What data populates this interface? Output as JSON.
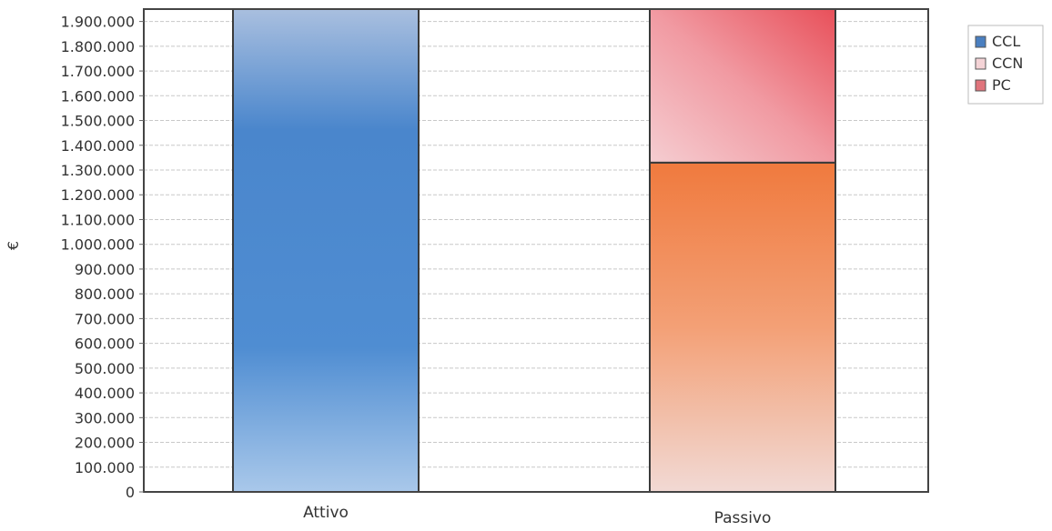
{
  "chart_data": {
    "type": "bar",
    "stacked": true,
    "title": "",
    "xlabel": "",
    "ylabel": "€",
    "ylim": [
      0,
      1950000
    ],
    "grid": true,
    "legend_position": "top-right",
    "categories": [
      "Attivo",
      "Passivo"
    ],
    "yticks": [
      0,
      100000,
      200000,
      300000,
      400000,
      500000,
      600000,
      700000,
      800000,
      900000,
      1000000,
      1100000,
      1200000,
      1300000,
      1400000,
      1500000,
      1600000,
      1700000,
      1800000,
      1900000
    ],
    "ytick_labels": [
      "0",
      "100.000",
      "200.000",
      "300.000",
      "400.000",
      "500.000",
      "600.000",
      "700.000",
      "800.000",
      "900.000",
      "1.000.000",
      "1.100.000",
      "1.200.000",
      "1.300.000",
      "1.400.000",
      "1.500.000",
      "1.600.000",
      "1.700.000",
      "1.800.000",
      "1.900.000"
    ],
    "series": [
      {
        "name": "CCL",
        "values": [
          1950000,
          0
        ],
        "color": "#3f7fc8"
      },
      {
        "name": "CCN",
        "values": [
          0,
          1330000
        ],
        "color": "#f08a4e"
      },
      {
        "name": "PC",
        "values": [
          0,
          620000
        ],
        "color": "#ec7a82"
      }
    ],
    "legend_colors": {
      "CCL": "#4a7fc0",
      "CCN": "#f4d3d6",
      "PC": "#e0747c"
    }
  }
}
